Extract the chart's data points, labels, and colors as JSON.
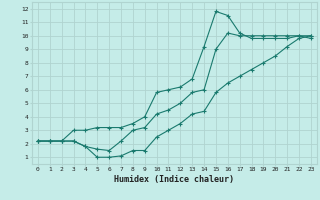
{
  "xlabel": "Humidex (Indice chaleur)",
  "bg_color": "#c5ece8",
  "grid_color": "#b0d4d0",
  "line_color": "#1a7a6e",
  "xlim": [
    -0.5,
    23.5
  ],
  "ylim": [
    0.5,
    12.5
  ],
  "xticks": [
    0,
    1,
    2,
    3,
    4,
    5,
    6,
    7,
    8,
    9,
    10,
    11,
    12,
    13,
    14,
    15,
    16,
    17,
    18,
    19,
    20,
    21,
    22,
    23
  ],
  "yticks": [
    1,
    2,
    3,
    4,
    5,
    6,
    7,
    8,
    9,
    10,
    11,
    12
  ],
  "line1_x": [
    0,
    1,
    2,
    3,
    4,
    5,
    6,
    7,
    8,
    9,
    10,
    11,
    12,
    13,
    14,
    15,
    16,
    17,
    18,
    19,
    20,
    21,
    22,
    23
  ],
  "line1_y": [
    2.2,
    2.2,
    2.2,
    2.2,
    1.8,
    1.0,
    1.0,
    1.1,
    1.5,
    1.5,
    2.5,
    3.0,
    3.5,
    4.2,
    4.4,
    5.8,
    6.5,
    7.0,
    7.5,
    8.0,
    8.5,
    9.2,
    9.8,
    10.0
  ],
  "line2_x": [
    0,
    1,
    2,
    3,
    4,
    5,
    6,
    7,
    8,
    9,
    10,
    11,
    12,
    13,
    14,
    15,
    16,
    17,
    18,
    19,
    20,
    21,
    22,
    23
  ],
  "line2_y": [
    2.2,
    2.2,
    2.2,
    3.0,
    3.0,
    3.2,
    3.2,
    3.2,
    3.5,
    4.0,
    5.8,
    6.0,
    6.2,
    6.8,
    9.2,
    11.8,
    11.5,
    10.2,
    9.8,
    9.8,
    9.8,
    9.8,
    10.0,
    9.8
  ],
  "line3_x": [
    0,
    1,
    2,
    3,
    4,
    5,
    6,
    7,
    8,
    9,
    10,
    11,
    12,
    13,
    14,
    15,
    16,
    17,
    18,
    19,
    20,
    21,
    22,
    23
  ],
  "line3_y": [
    2.2,
    2.2,
    2.2,
    2.2,
    1.8,
    1.6,
    1.5,
    2.2,
    3.0,
    3.2,
    4.2,
    4.5,
    5.0,
    5.8,
    6.0,
    9.0,
    10.2,
    10.0,
    10.0,
    10.0,
    10.0,
    10.0,
    10.0,
    10.0
  ]
}
